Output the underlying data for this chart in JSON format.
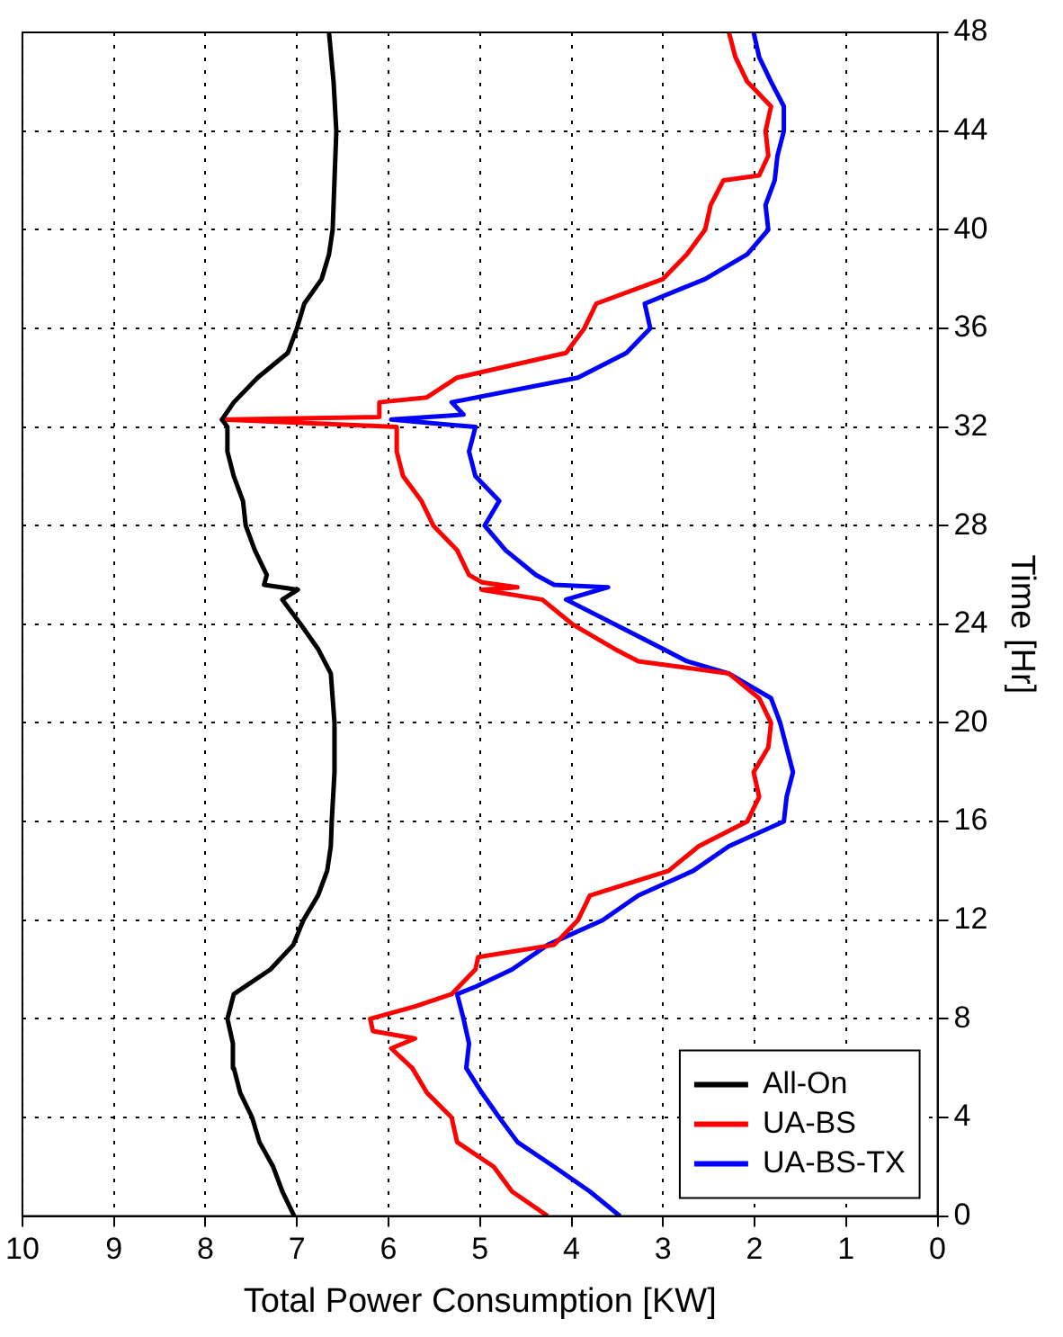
{
  "chart_data": {
    "type": "line",
    "xlabel": "Total Power Consumption [KW]",
    "ylabel": "Time [Hr]",
    "xlim": [
      10,
      0
    ],
    "xticks": [
      10,
      9,
      8,
      7,
      6,
      5,
      4,
      3,
      2,
      1,
      0
    ],
    "ylim": [
      0,
      48
    ],
    "yticks": [
      0,
      4,
      8,
      12,
      16,
      20,
      24,
      28,
      32,
      36,
      40,
      44,
      48
    ],
    "grid": true,
    "legend": "bottom right",
    "line_style": "solid",
    "marker": "none",
    "series": [
      {
        "name": "All-On",
        "color": "#000000",
        "values": [
          0,
          1,
          2,
          3,
          4,
          5,
          6,
          7,
          8,
          9,
          10,
          11,
          12,
          13,
          14,
          15,
          16,
          18,
          20,
          22,
          23,
          24,
          25,
          25.4,
          25.6,
          26,
          27,
          28,
          29,
          30,
          31,
          32,
          32.3,
          33,
          34,
          35,
          36,
          37,
          38,
          39,
          40,
          42,
          44,
          46,
          48
        ],
        "x": [
          7.03,
          7.16,
          7.26,
          7.41,
          7.49,
          7.62,
          7.69,
          7.7,
          7.76,
          7.69,
          7.29,
          7.04,
          6.93,
          6.77,
          6.67,
          6.63,
          6.62,
          6.59,
          6.59,
          6.63,
          6.77,
          6.96,
          7.16,
          6.99,
          7.36,
          7.33,
          7.46,
          7.56,
          7.59,
          7.69,
          7.76,
          7.76,
          7.82,
          7.69,
          7.43,
          7.1,
          7.0,
          6.92,
          6.73,
          6.65,
          6.61,
          6.59,
          6.57,
          6.6,
          6.65
        ]
      },
      {
        "name": "UA-BS",
        "color": "#ff0000",
        "values": [
          0,
          1,
          2,
          3,
          4,
          5,
          6,
          6.8,
          7.2,
          7.5,
          8,
          8.5,
          9,
          10,
          10.5,
          11,
          12,
          13,
          14,
          15,
          16,
          17,
          18,
          19,
          20,
          21,
          22,
          22.5,
          23,
          24,
          25,
          25.4,
          25.5,
          25.7,
          26,
          27,
          28,
          29,
          30,
          31,
          32,
          32.3,
          32.4,
          33,
          33.2,
          34,
          35,
          36,
          37,
          38,
          39,
          40,
          41,
          42,
          42.2,
          43,
          44,
          45,
          46,
          47,
          48
        ],
        "x": [
          4.26,
          4.65,
          4.85,
          5.25,
          5.31,
          5.58,
          5.74,
          5.97,
          5.71,
          6.17,
          6.2,
          5.71,
          5.31,
          5.05,
          5.02,
          4.19,
          3.93,
          3.8,
          2.94,
          2.61,
          2.08,
          1.95,
          2.01,
          1.85,
          1.82,
          1.95,
          2.28,
          3.27,
          3.53,
          3.99,
          4.32,
          4.98,
          4.59,
          4.98,
          5.12,
          5.25,
          5.51,
          5.64,
          5.84,
          5.91,
          5.91,
          7.82,
          6.1,
          6.1,
          5.58,
          5.25,
          4.06,
          3.86,
          3.73,
          3.0,
          2.74,
          2.54,
          2.48,
          2.34,
          1.95,
          1.85,
          1.88,
          1.82,
          2.08,
          2.21,
          2.28
        ]
      },
      {
        "name": "UA-BS-TX",
        "color": "#0000ff",
        "values": [
          0,
          1,
          2,
          3,
          4,
          5,
          6,
          7,
          8,
          9,
          9.3,
          10,
          11,
          12,
          13,
          14,
          15,
          16,
          17,
          18,
          19,
          20,
          21,
          22,
          22.5,
          23,
          24,
          25,
          25.5,
          25.6,
          26,
          27,
          28,
          29,
          30,
          31,
          32,
          32.3,
          32.5,
          33,
          34,
          35,
          36,
          37,
          38,
          39,
          40,
          41,
          42,
          43,
          44,
          45,
          46,
          47,
          48
        ],
        "x": [
          3.47,
          3.8,
          4.19,
          4.59,
          4.79,
          4.98,
          5.15,
          5.12,
          5.18,
          5.25,
          5.05,
          4.65,
          4.26,
          3.66,
          3.27,
          2.67,
          2.28,
          1.68,
          1.65,
          1.58,
          1.65,
          1.72,
          1.82,
          2.28,
          2.74,
          3.0,
          3.53,
          4.06,
          3.6,
          4.19,
          4.39,
          4.72,
          4.95,
          4.79,
          5.05,
          5.12,
          5.05,
          5.97,
          5.18,
          5.31,
          3.93,
          3.4,
          3.14,
          3.2,
          2.54,
          2.08,
          1.85,
          1.88,
          1.78,
          1.75,
          1.68,
          1.68,
          1.82,
          1.95,
          2.01
        ]
      }
    ]
  }
}
